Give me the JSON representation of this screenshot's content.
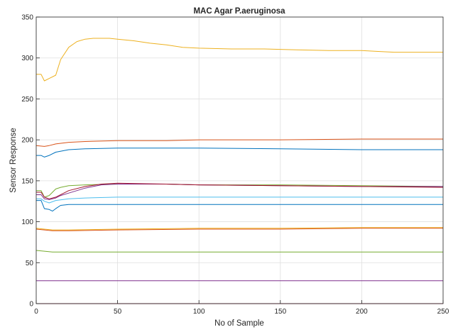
{
  "chart_data": {
    "type": "line",
    "title": "MAC Agar P.aeruginosa",
    "xlabel": "No of Sample",
    "ylabel": "Sensor Response",
    "xlim": [
      0,
      250
    ],
    "ylim": [
      0,
      350
    ],
    "xticks": [
      0,
      50,
      100,
      150,
      200,
      250
    ],
    "yticks": [
      0,
      50,
      100,
      150,
      200,
      250,
      300,
      350
    ],
    "grid": true,
    "legend": "none",
    "series": [
      {
        "color": "#EDB120",
        "x": [
          0,
          3,
          5,
          8,
          12,
          15,
          20,
          25,
          30,
          35,
          40,
          45,
          50,
          60,
          70,
          80,
          90,
          100,
          120,
          140,
          160,
          180,
          200,
          210,
          220,
          230,
          240,
          250
        ],
        "y": [
          280,
          280,
          272,
          275,
          279,
          298,
          313,
          320,
          323,
          324,
          324,
          324,
          323,
          321,
          318,
          316,
          313,
          312,
          311,
          311,
          310,
          309,
          309,
          308,
          307,
          307,
          307,
          307
        ]
      },
      {
        "color": "#D95319",
        "x": [
          0,
          5,
          8,
          12,
          20,
          30,
          50,
          80,
          100,
          150,
          200,
          250
        ],
        "y": [
          193,
          192,
          193,
          195,
          197,
          198,
          199,
          199,
          200,
          200,
          201,
          201
        ]
      },
      {
        "color": "#0072BD",
        "x": [
          0,
          3,
          5,
          8,
          12,
          20,
          30,
          50,
          80,
          100,
          150,
          200,
          250
        ],
        "y": [
          181,
          181,
          179,
          181,
          185,
          188,
          189,
          190,
          190,
          190,
          189,
          188,
          188
        ]
      },
      {
        "color": "#77AC30",
        "x": [
          0,
          3,
          5,
          8,
          12,
          15,
          20,
          30,
          50,
          80,
          100,
          150,
          200,
          250
        ],
        "y": [
          138,
          138,
          130,
          132,
          140,
          142,
          144,
          145,
          146,
          146,
          145,
          145,
          144,
          143
        ]
      },
      {
        "color": "#7E2F8E",
        "x": [
          0,
          3,
          5,
          8,
          12,
          15,
          20,
          25,
          30,
          35,
          40,
          50,
          80,
          100,
          150,
          200,
          250
        ],
        "y": [
          133,
          133,
          128,
          127,
          129,
          132,
          135,
          138,
          141,
          143,
          145,
          146,
          146,
          145,
          144,
          143,
          143
        ]
      },
      {
        "color": "#A2142F",
        "x": [
          0,
          3,
          5,
          8,
          12,
          20,
          30,
          40,
          50,
          80,
          100,
          150,
          200,
          250
        ],
        "y": [
          136,
          136,
          130,
          128,
          130,
          138,
          143,
          146,
          147,
          146,
          145,
          144,
          143,
          142
        ]
      },
      {
        "color": "#4DBEEE",
        "x": [
          0,
          3,
          5,
          8,
          12,
          20,
          30,
          50,
          100,
          150,
          200,
          250
        ],
        "y": [
          128,
          128,
          125,
          123,
          126,
          128,
          129,
          130,
          130,
          130,
          130,
          130
        ]
      },
      {
        "color": "#0072BD",
        "x": [
          0,
          3,
          5,
          8,
          10,
          12,
          15,
          20,
          30,
          50,
          100,
          150,
          200,
          250
        ],
        "y": [
          126,
          126,
          116,
          115,
          113,
          116,
          120,
          121,
          121,
          121,
          121,
          121,
          121,
          121
        ]
      },
      {
        "color": "#EDB120",
        "x": [
          0,
          5,
          10,
          20,
          50,
          100,
          150,
          200,
          250
        ],
        "y": [
          92,
          91,
          90,
          90,
          91,
          92,
          92,
          93,
          93
        ]
      },
      {
        "color": "#D95319",
        "x": [
          0,
          5,
          10,
          20,
          50,
          100,
          150,
          200,
          250
        ],
        "y": [
          91,
          90,
          89,
          89,
          90,
          91,
          91,
          92,
          92
        ]
      },
      {
        "color": "#77AC30",
        "x": [
          0,
          5,
          10,
          20,
          50,
          100,
          150,
          200,
          250
        ],
        "y": [
          65,
          64,
          63,
          63,
          63,
          63,
          63,
          63,
          63
        ]
      },
      {
        "color": "#7E2F8E",
        "x": [
          0,
          50,
          100,
          150,
          200,
          250
        ],
        "y": [
          28,
          28,
          28,
          28,
          28,
          28
        ]
      },
      {
        "color": "#A2142F",
        "x": [
          0,
          50,
          100,
          150,
          200,
          250
        ],
        "y": [
          0,
          0,
          0,
          0,
          0,
          0
        ]
      }
    ]
  }
}
